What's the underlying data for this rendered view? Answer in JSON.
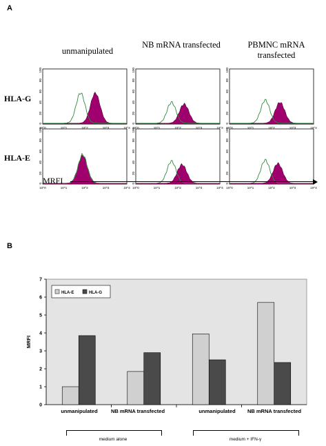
{
  "panel_a": {
    "letter": "A",
    "columns": [
      "unmanipulated",
      "NB mRNA transfected",
      "PBMNC mRNA transfected"
    ],
    "rows": [
      "HLA-G",
      "HLA-E"
    ],
    "axis_label": "MRFI",
    "y_ticks": [
      "0",
      "20",
      "40",
      "60",
      "80",
      "100"
    ],
    "x_ticks": [
      "10^0",
      "10^1",
      "10^2",
      "10^3",
      "10^4"
    ],
    "colors": {
      "control": "#2e8b3a",
      "stained": "#a0006e"
    },
    "histograms": [
      {
        "row": "HLA-G",
        "col": "unmanipulated",
        "control_peak_log": 1.8,
        "stained_peak_log": 2.5,
        "control_height": 0.55,
        "stained_height": 0.55
      },
      {
        "row": "HLA-G",
        "col": "NB mRNA transfected",
        "control_peak_log": 1.7,
        "stained_peak_log": 2.3,
        "control_height": 0.38,
        "stained_height": 0.35
      },
      {
        "row": "HLA-G",
        "col": "PBMNC mRNA transfected",
        "control_peak_log": 1.7,
        "stained_peak_log": 2.4,
        "control_height": 0.42,
        "stained_height": 0.38
      },
      {
        "row": "HLA-E",
        "col": "unmanipulated",
        "control_peak_log": 1.9,
        "stained_peak_log": 1.9,
        "control_height": 0.52,
        "stained_height": 0.5
      },
      {
        "row": "HLA-E",
        "col": "NB mRNA transfected",
        "control_peak_log": 1.7,
        "stained_peak_log": 2.2,
        "control_height": 0.4,
        "stained_height": 0.34
      },
      {
        "row": "HLA-E",
        "col": "PBMNC mRNA transfected",
        "control_peak_log": 1.7,
        "stained_peak_log": 2.3,
        "control_height": 0.42,
        "stained_height": 0.36
      }
    ]
  },
  "chart_data": {
    "type": "bar",
    "panel_letter": "B",
    "categories": [
      "unmanipulated",
      "NB mRNA transfected",
      "unmanipulated",
      "NB mRNA transfected"
    ],
    "series": [
      {
        "name": "HLA-E",
        "values": [
          1.0,
          1.85,
          3.95,
          5.7
        ],
        "color": "#d0d0d0"
      },
      {
        "name": "HLA-G",
        "values": [
          3.85,
          2.9,
          2.5,
          2.35
        ],
        "color": "#4a4a4a"
      }
    ],
    "ylabel": "MRFI",
    "ylim": [
      0,
      7
    ],
    "yticks": [
      0,
      1,
      2,
      3,
      4,
      5,
      6,
      7
    ],
    "legend_position": "top-left",
    "groups": [
      "medium alone",
      "medium + IFN-γ"
    ],
    "plot_background": "#e4e4e4"
  }
}
